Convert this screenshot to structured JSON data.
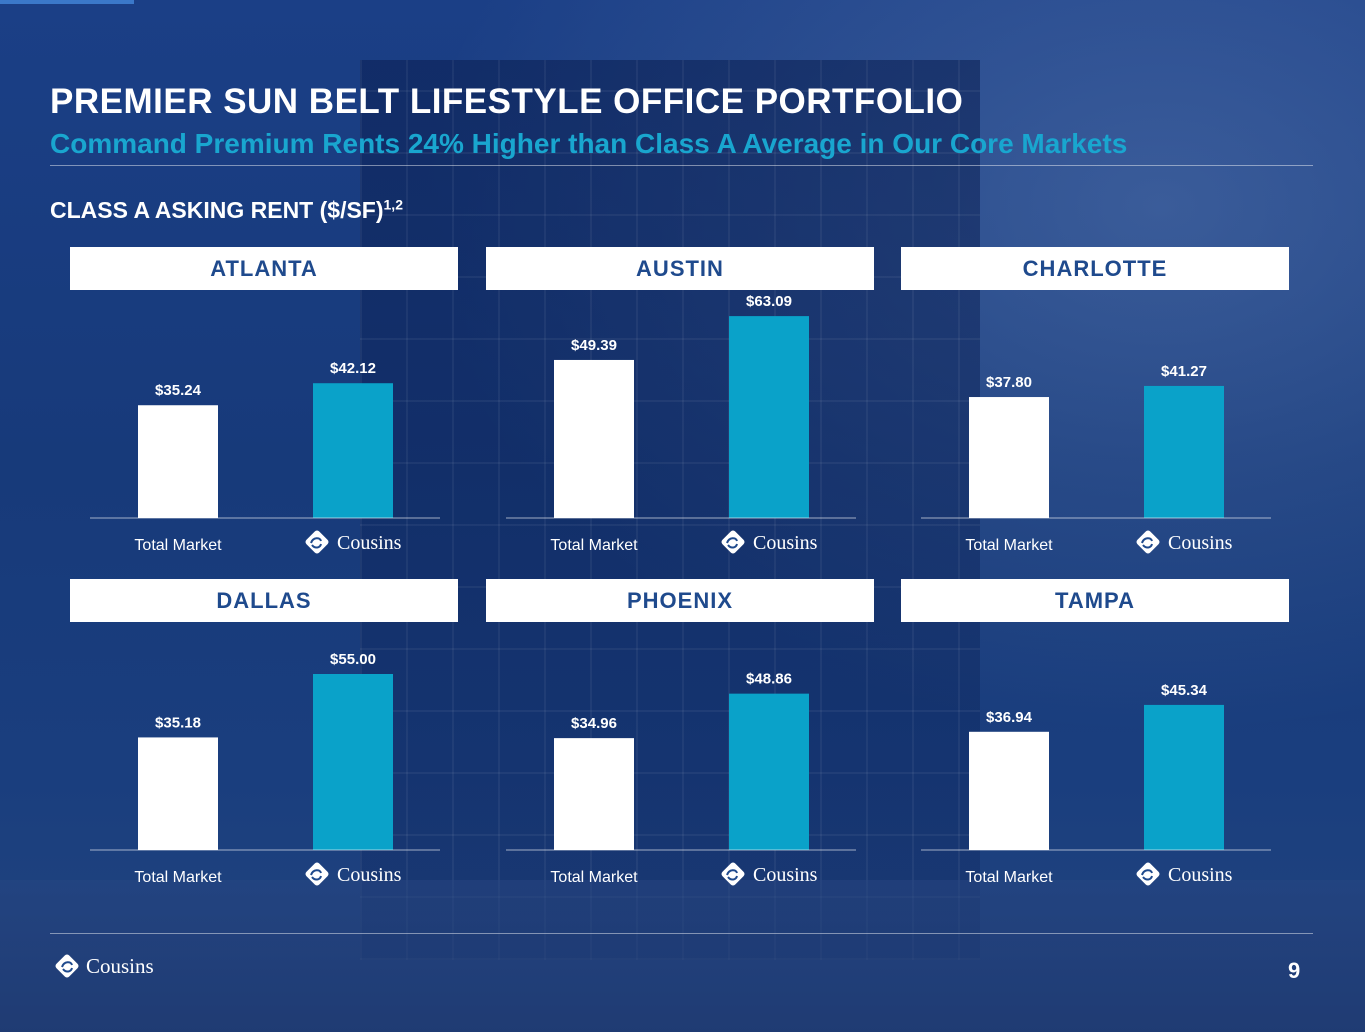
{
  "title": "PREMIER SUN BELT LIFESTYLE OFFICE PORTFOLIO",
  "subtitle": "Command Premium Rents 24% Higher than Class A Average in Our Core Markets",
  "section_heading": "CLASS A ASKING RENT ($/SF)",
  "section_heading_sup": "1,2",
  "brand": "Cousins",
  "page_number": "9",
  "colors": {
    "total_market_bar": "#ffffff",
    "cousins_bar": "#0aa2c9",
    "header_text": "#1f4a8d",
    "subtitle": "#19a6cf"
  },
  "chart_data": [
    {
      "type": "bar",
      "title": "ATLANTA",
      "categories": [
        "Total Market",
        "Cousins"
      ],
      "values": [
        35.24,
        42.12
      ],
      "labels": [
        "$35.24",
        "$42.12"
      ]
    },
    {
      "type": "bar",
      "title": "AUSTIN",
      "categories": [
        "Total Market",
        "Cousins"
      ],
      "values": [
        49.39,
        63.09
      ],
      "labels": [
        "$49.39",
        "$63.09"
      ]
    },
    {
      "type": "bar",
      "title": "CHARLOTTE",
      "categories": [
        "Total Market",
        "Cousins"
      ],
      "values": [
        37.8,
        41.27
      ],
      "labels": [
        "$37.80",
        "$41.27"
      ]
    },
    {
      "type": "bar",
      "title": "DALLAS",
      "categories": [
        "Total Market",
        "Cousins"
      ],
      "values": [
        35.18,
        55.0
      ],
      "labels": [
        "$35.18",
        "$55.00"
      ]
    },
    {
      "type": "bar",
      "title": "PHOENIX",
      "categories": [
        "Total Market",
        "Cousins"
      ],
      "values": [
        34.96,
        48.86
      ],
      "labels": [
        "$34.96",
        "$48.86"
      ]
    },
    {
      "type": "bar",
      "title": "TAMPA",
      "categories": [
        "Total Market",
        "Cousins"
      ],
      "values": [
        36.94,
        45.34
      ],
      "labels": [
        "$36.94",
        "$45.34"
      ]
    }
  ]
}
